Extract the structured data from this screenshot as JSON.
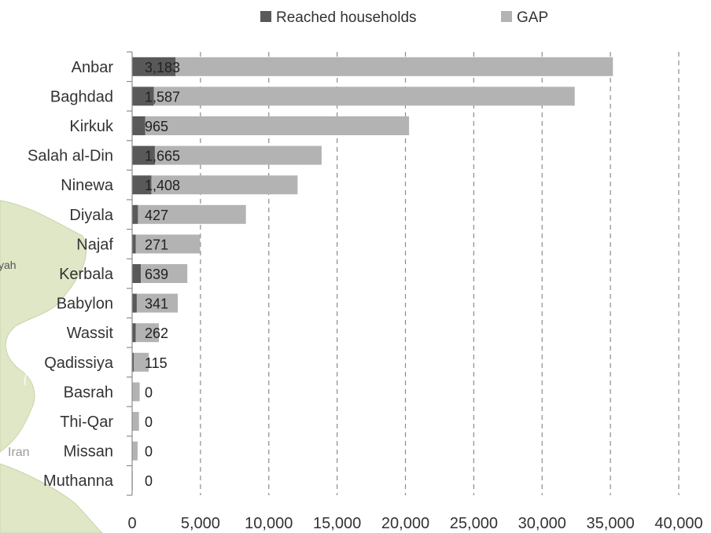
{
  "map_fragments": {
    "left_label": "yah",
    "iran_label": "Iran"
  },
  "legend": [
    {
      "label": "Reached households",
      "color": "#595959"
    },
    {
      "label": "GAP",
      "color": "#b3b3b3"
    }
  ],
  "chart_data": {
    "type": "bar",
    "orientation": "horizontal",
    "stacked": true,
    "categories": [
      "Anbar",
      "Baghdad",
      "Kirkuk",
      "Salah al-Din",
      "Ninewa",
      "Diyala",
      "Najaf",
      "Kerbala",
      "Babylon",
      "Wassit",
      "Qadissiya",
      "Basrah",
      "Thi-Qar",
      "Missan",
      "Muthanna"
    ],
    "series": [
      {
        "name": "Reached households",
        "color": "#595959",
        "values": [
          3183,
          1587,
          965,
          1665,
          1408,
          427,
          271,
          639,
          341,
          262,
          115,
          0,
          0,
          0,
          0
        ]
      },
      {
        "name": "GAP",
        "color": "#b3b3b3",
        "values": [
          32000,
          30800,
          19300,
          12200,
          10700,
          7900,
          4700,
          3400,
          3000,
          1700,
          1100,
          550,
          500,
          400,
          50
        ]
      }
    ],
    "data_labels": [
      "3,183",
      "1,587",
      "965",
      "1,665",
      "1,408",
      "427",
      "271",
      "639",
      "341",
      "262",
      "115",
      "0",
      "0",
      "0",
      "0"
    ],
    "xlim": [
      0,
      40000
    ],
    "xticks": [
      0,
      5000,
      10000,
      15000,
      20000,
      25000,
      30000,
      35000,
      40000
    ],
    "xtick_labels": [
      "0",
      "5,000",
      "10,000",
      "15,000",
      "20,000",
      "25,000",
      "30,000",
      "35,000",
      "40,000"
    ],
    "grid": "vertical dashed",
    "legend_position": "top",
    "title": "",
    "xlabel": "",
    "ylabel": ""
  }
}
